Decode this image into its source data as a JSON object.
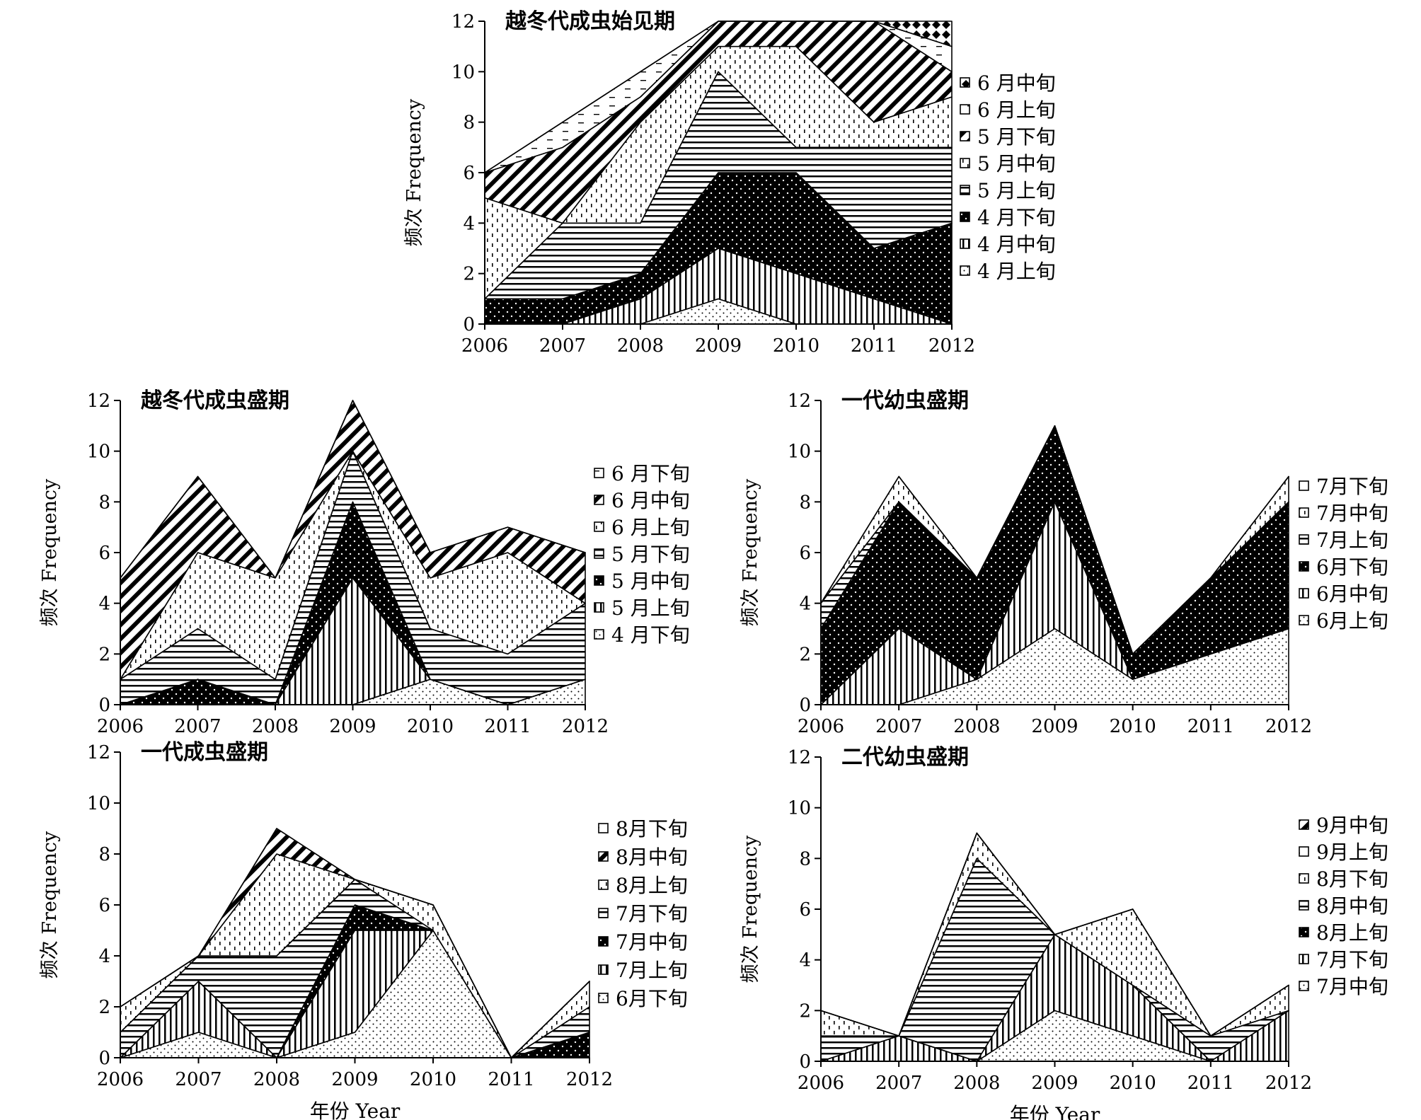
{
  "figure": {
    "x_axis_title": "年份 Year",
    "y_axis_title": "频次 Frequency"
  },
  "chart_data": [
    {
      "type": "area",
      "title": "越冬代成虫始见期",
      "xlabel": "",
      "ylabel": "频次 Frequency",
      "x": [
        "2006",
        "2007",
        "2008",
        "2009",
        "2010",
        "2011",
        "2012"
      ],
      "ylim": [
        0,
        12
      ],
      "yticks": [
        0,
        2,
        4,
        6,
        8,
        10,
        12
      ],
      "legend_position": "right",
      "series": [
        {
          "name": "4 月上旬",
          "pattern": "dots-light",
          "values": [
            0,
            0,
            0,
            1,
            0,
            0,
            0
          ]
        },
        {
          "name": "4 月中旬",
          "pattern": "vlines",
          "values": [
            0,
            0,
            1,
            2,
            2,
            1,
            0
          ]
        },
        {
          "name": "4 月下旬",
          "pattern": "dots-dark",
          "values": [
            1,
            1,
            1,
            3,
            4,
            2,
            4
          ]
        },
        {
          "name": "5 月上旬",
          "pattern": "hlines",
          "values": [
            0,
            3,
            2,
            4,
            1,
            4,
            3
          ]
        },
        {
          "name": "5 月中旬",
          "pattern": "dashes",
          "values": [
            4,
            0,
            4,
            1,
            4,
            1,
            2
          ]
        },
        {
          "name": "5 月下旬",
          "pattern": "diag-thick",
          "values": [
            1,
            3,
            1,
            1,
            1,
            4,
            1
          ]
        },
        {
          "name": "6 月上旬",
          "pattern": "dashes-sparse",
          "values": [
            0,
            1,
            1,
            0,
            0,
            0,
            1
          ]
        },
        {
          "name": "6 月中旬",
          "pattern": "diamonds",
          "values": [
            0,
            0,
            0,
            0,
            0,
            0,
            1
          ]
        }
      ]
    },
    {
      "type": "area",
      "title": "越冬代成虫盛期",
      "xlabel": "",
      "ylabel": "频次 Frequency",
      "x": [
        "2006",
        "2007",
        "2008",
        "2009",
        "2010",
        "2011",
        "2012"
      ],
      "ylim": [
        0,
        12
      ],
      "yticks": [
        0,
        2,
        4,
        6,
        8,
        10,
        12
      ],
      "legend_position": "right",
      "series": [
        {
          "name": "4 月下旬",
          "pattern": "dots-light",
          "values": [
            0,
            0,
            0,
            0,
            1,
            0,
            1
          ]
        },
        {
          "name": "5 月上旬",
          "pattern": "vlines",
          "values": [
            0,
            0,
            0,
            5,
            0,
            0,
            0
          ]
        },
        {
          "name": "5 月中旬",
          "pattern": "dots-dark",
          "values": [
            0,
            1,
            0,
            3,
            0,
            0,
            0
          ]
        },
        {
          "name": "5 月下旬",
          "pattern": "hlines",
          "values": [
            1,
            2,
            1,
            2,
            2,
            2,
            3
          ]
        },
        {
          "name": "6 月上旬",
          "pattern": "dashes",
          "values": [
            0,
            3,
            4,
            0,
            2,
            4,
            0
          ]
        },
        {
          "name": "6 月中旬",
          "pattern": "diag-thick",
          "values": [
            4,
            3,
            0,
            2,
            1,
            1,
            2
          ]
        },
        {
          "name": "6 月下旬",
          "pattern": "dashes-sparse",
          "values": [
            0,
            0,
            0,
            0,
            0,
            0,
            0
          ]
        }
      ]
    },
    {
      "type": "area",
      "title": "一代幼虫盛期",
      "xlabel": "",
      "ylabel": "频次 Frequency",
      "x": [
        "2006",
        "2007",
        "2008",
        "2009",
        "2010",
        "2011",
        "2012"
      ],
      "ylim": [
        0,
        12
      ],
      "yticks": [
        0,
        2,
        4,
        6,
        8,
        10,
        12
      ],
      "legend_position": "right",
      "series": [
        {
          "name": "6月上旬",
          "pattern": "dots-light",
          "values": [
            0,
            0,
            1,
            3,
            1,
            2,
            3
          ]
        },
        {
          "name": "6月中旬",
          "pattern": "vlines",
          "values": [
            0,
            3,
            0,
            5,
            0,
            0,
            0
          ]
        },
        {
          "name": "6月下旬",
          "pattern": "dots-dark",
          "values": [
            3,
            5,
            4,
            3,
            1,
            3,
            5
          ]
        },
        {
          "name": "7月上旬",
          "pattern": "hlines",
          "values": [
            1,
            0,
            0,
            0,
            0,
            0,
            0
          ]
        },
        {
          "name": "7月中旬",
          "pattern": "dashes",
          "values": [
            0,
            1,
            0,
            0,
            0,
            0,
            1
          ]
        },
        {
          "name": "7月下旬",
          "pattern": "dashes-sparse",
          "values": [
            0,
            0,
            0,
            0,
            0,
            0,
            0
          ]
        }
      ]
    },
    {
      "type": "area",
      "title": "一代成虫盛期",
      "xlabel": "年份 Year",
      "ylabel": "频次 Frequency",
      "x": [
        "2006",
        "2007",
        "2008",
        "2009",
        "2010",
        "2011",
        "2012"
      ],
      "ylim": [
        0,
        12
      ],
      "yticks": [
        0,
        2,
        4,
        6,
        8,
        10,
        12
      ],
      "legend_position": "right",
      "series": [
        {
          "name": "6月下旬",
          "pattern": "dots-light",
          "values": [
            0,
            1,
            0,
            1,
            5,
            0,
            0
          ]
        },
        {
          "name": "7月上旬",
          "pattern": "vlines",
          "values": [
            0,
            2,
            0,
            4,
            0,
            0,
            0
          ]
        },
        {
          "name": "7月中旬",
          "pattern": "dots-dark",
          "values": [
            0,
            0,
            0,
            1,
            0,
            0,
            1
          ]
        },
        {
          "name": "7月下旬",
          "pattern": "hlines",
          "values": [
            1,
            1,
            4,
            1,
            0,
            0,
            1
          ]
        },
        {
          "name": "8月上旬",
          "pattern": "dashes",
          "values": [
            1,
            0,
            4,
            0,
            1,
            0,
            1
          ]
        },
        {
          "name": "8月中旬",
          "pattern": "diag-thick",
          "values": [
            0,
            0,
            1,
            0,
            0,
            0,
            0
          ]
        },
        {
          "name": "8月下旬",
          "pattern": "dashes-sparse",
          "values": [
            0,
            0,
            0,
            0,
            0,
            0,
            0
          ]
        }
      ]
    },
    {
      "type": "area",
      "title": "二代幼虫盛期",
      "xlabel": "年份 Year",
      "ylabel": "频次 Frequency",
      "x": [
        "2006",
        "2007",
        "2008",
        "2009",
        "2010",
        "2011",
        "2012"
      ],
      "ylim": [
        0,
        12
      ],
      "yticks": [
        0,
        2,
        4,
        6,
        8,
        10,
        12
      ],
      "legend_position": "right",
      "series": [
        {
          "name": "7月中旬",
          "pattern": "dots-light",
          "values": [
            0,
            0,
            0,
            2,
            1,
            0,
            0
          ]
        },
        {
          "name": "7月下旬",
          "pattern": "vlines",
          "values": [
            0,
            1,
            0,
            3,
            2,
            0,
            2
          ]
        },
        {
          "name": "8月上旬",
          "pattern": "dots-dark",
          "values": [
            0,
            0,
            0,
            0,
            0,
            0,
            0
          ]
        },
        {
          "name": "8月中旬",
          "pattern": "hlines",
          "values": [
            1,
            0,
            8,
            0,
            0,
            1,
            0
          ]
        },
        {
          "name": "8月下旬",
          "pattern": "dashes",
          "values": [
            1,
            0,
            1,
            0,
            3,
            0,
            1
          ]
        },
        {
          "name": "9月上旬",
          "pattern": "dashes-sparse",
          "values": [
            0,
            0,
            0,
            0,
            0,
            0,
            0
          ]
        },
        {
          "name": "9月中旬",
          "pattern": "diag-thick",
          "values": [
            0,
            0,
            0,
            0,
            0,
            0,
            0
          ]
        }
      ]
    }
  ]
}
